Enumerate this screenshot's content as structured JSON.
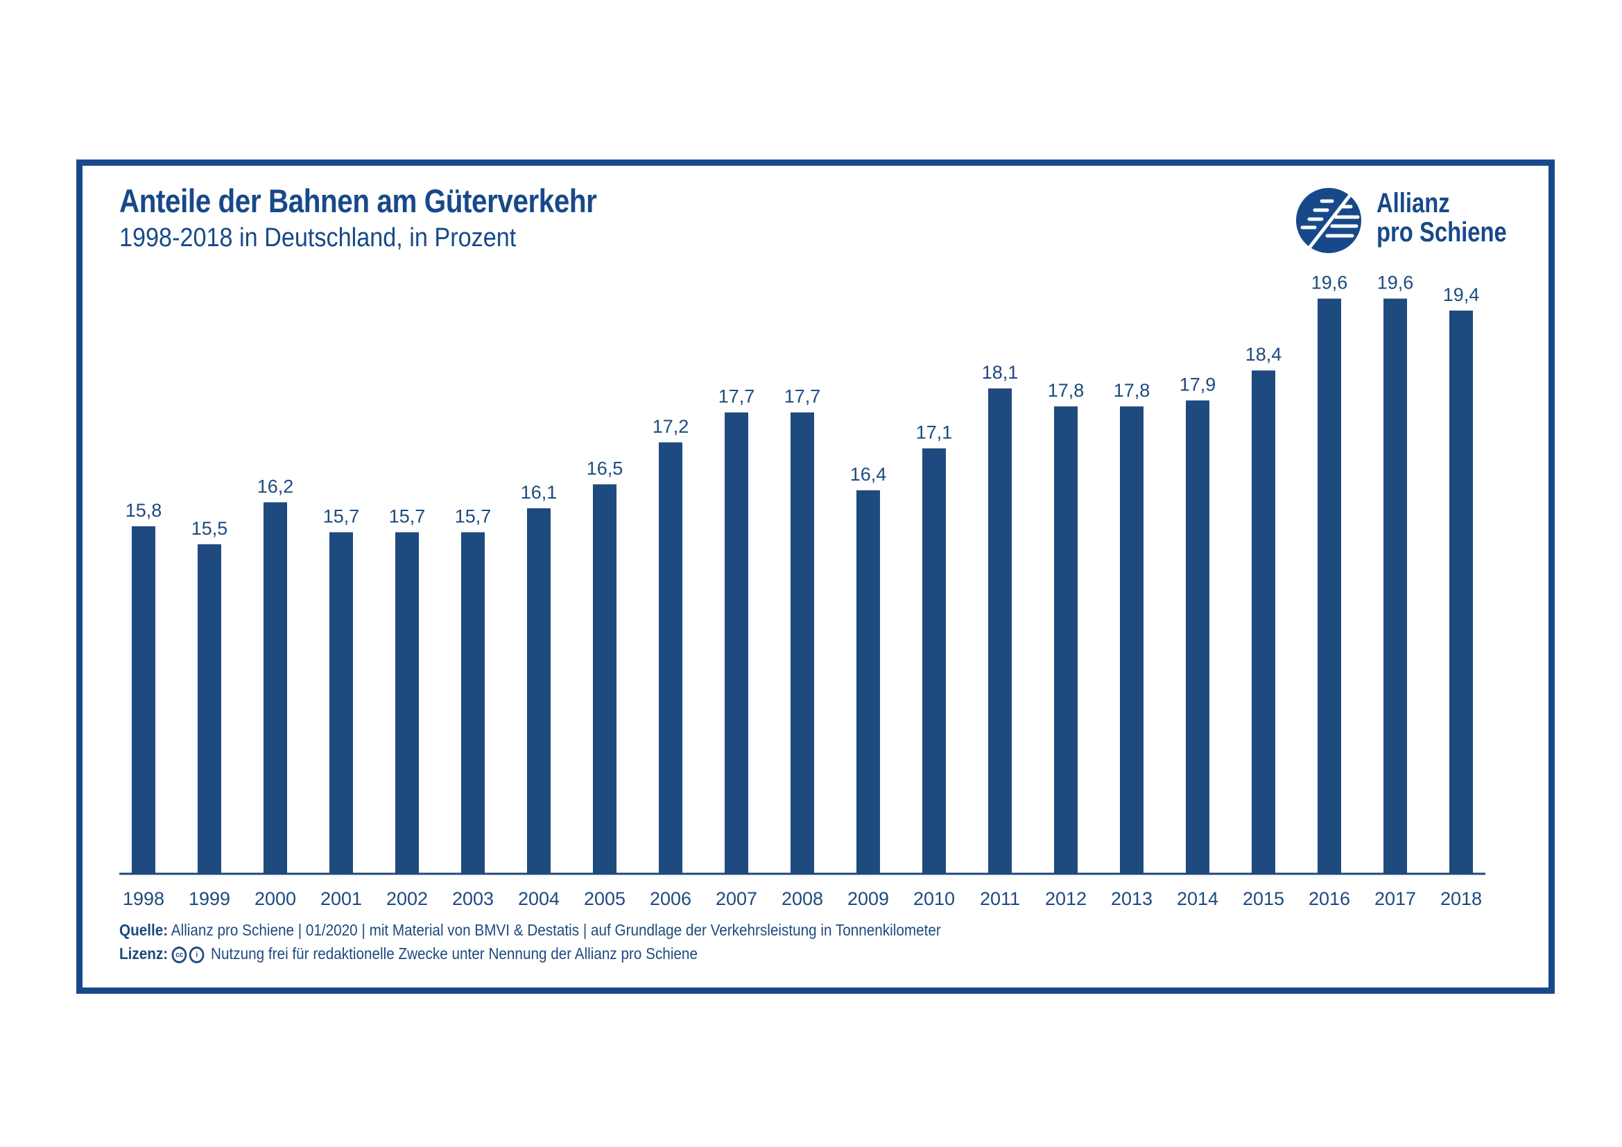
{
  "chart_data": {
    "type": "bar",
    "title": "Anteile der Bahnen am Güterverkehr",
    "subtitle": "1998-2018 in Deutschland, in Prozent",
    "categories": [
      "1998",
      "1999",
      "2000",
      "2001",
      "2002",
      "2003",
      "2004",
      "2005",
      "2006",
      "2007",
      "2008",
      "2009",
      "2010",
      "2011",
      "2012",
      "2013",
      "2014",
      "2015",
      "2016",
      "2017",
      "2018"
    ],
    "values": [
      15.8,
      15.5,
      16.2,
      15.7,
      15.7,
      15.7,
      16.1,
      16.5,
      17.2,
      17.7,
      17.7,
      16.4,
      17.1,
      18.1,
      17.8,
      17.8,
      17.9,
      18.4,
      19.6,
      19.6,
      19.4
    ],
    "value_labels": [
      "15,8",
      "15,5",
      "16,2",
      "15,7",
      "15,7",
      "15,7",
      "16,1",
      "16,5",
      "17,2",
      "17,7",
      "17,7",
      "16,4",
      "17,1",
      "18,1",
      "17,8",
      "17,8",
      "17,9",
      "18,4",
      "19,6",
      "19,6",
      "19,4"
    ],
    "xlabel": "",
    "ylabel": "",
    "ylim": [
      10,
      20
    ],
    "grid": false,
    "bar_color": "#1f4a7f"
  },
  "logo": {
    "line1": "Allianz",
    "line2": "pro Schiene"
  },
  "footer": {
    "source_label": "Quelle:",
    "source_text": "Allianz pro Schiene | 01/2020 | mit Material von BMVI & Destatis | auf Grundlage der Verkehrsleistung in Tonnenkilometer",
    "license_label": "Lizenz:",
    "license_text": "Nutzung frei für redaktionelle Zwecke unter Nennung der Allianz pro Schiene"
  }
}
